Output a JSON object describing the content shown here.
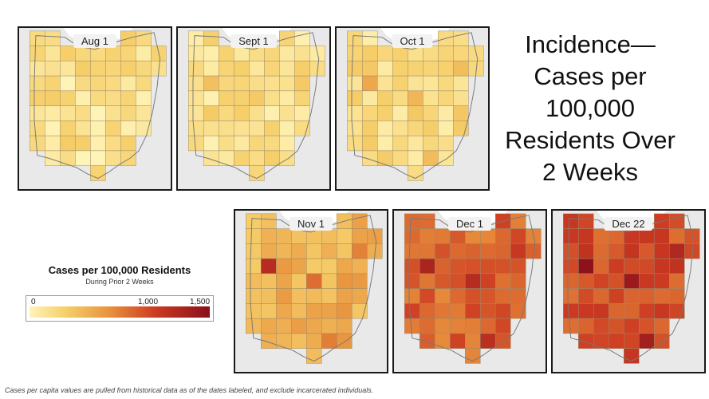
{
  "title": "Incidence—Cases per 100,000 Residents Over 2 Weeks",
  "title_lines": [
    "Incidence—",
    "Cases per",
    "100,000",
    "Residents Over",
    "2 Weeks"
  ],
  "maps": [
    {
      "label": "Aug 1",
      "level": 0.1,
      "hot": [
        0.18,
        0.14,
        0.12
      ],
      "base": 0.08
    },
    {
      "label": "Sept 1",
      "level": 0.14,
      "hot": [
        0.26,
        0.22,
        0.2
      ],
      "base": 0.1
    },
    {
      "label": "Oct 1",
      "level": 0.18,
      "hot": [
        0.36,
        0.3,
        0.28
      ],
      "base": 0.12
    },
    {
      "label": "Nov 1",
      "level": 0.36,
      "hot": [
        0.8,
        0.55,
        0.5
      ],
      "base": 0.3
    },
    {
      "label": "Dec 1",
      "level": 0.62,
      "hot": [
        0.85,
        0.8,
        0.78
      ],
      "base": 0.55
    },
    {
      "label": "Dec 22",
      "level": 0.72,
      "hot": [
        0.98,
        0.92,
        0.88
      ],
      "base": 0.62
    }
  ],
  "legend": {
    "title": "Cases per 100,000 Residents",
    "subtitle": "During Prior 2 Weeks",
    "ticks": [
      "0",
      "1,000",
      "1,500"
    ]
  },
  "footnote": "Cases per capita values are pulled from historical data as of the dates labeled, and exclude incarcerated individuals.",
  "colors": {
    "low": "#fff4b8",
    "mid": "#e8903c",
    "high": "#8a0f1c",
    "lake": "#ffffff",
    "land_outside": "#e9e9e9",
    "border": "#1a1a1a"
  }
}
